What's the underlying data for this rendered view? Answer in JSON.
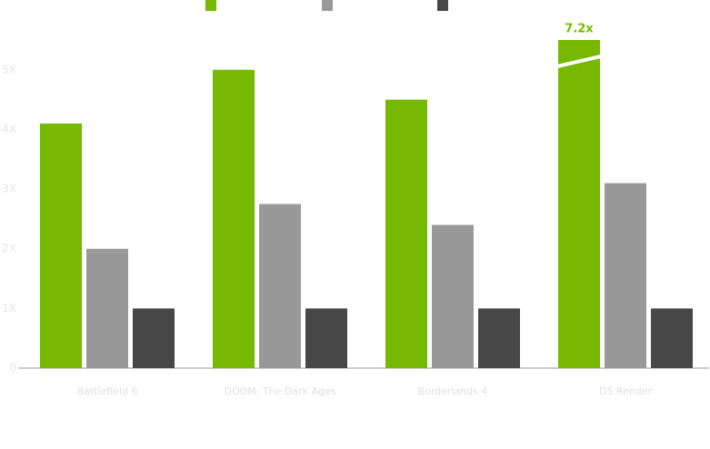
{
  "chart_data": {
    "type": "bar",
    "categories": [
      "Battlefield 6",
      "DOOM: The Dark Ages",
      "Borderlands 4",
      "D5 Render"
    ],
    "series": [
      {
        "color": "#76b900",
        "values": [
          4.1,
          5.0,
          4.5,
          7.2
        ],
        "value_labels": [
          null,
          null,
          null,
          "7.2x"
        ]
      },
      {
        "color": "#999999",
        "values": [
          2.0,
          2.75,
          2.4,
          3.1
        ]
      },
      {
        "color": "#474747",
        "values": [
          1.0,
          1.0,
          1.0,
          1.0
        ]
      }
    ],
    "ylim": [
      0,
      5.5
    ],
    "yticks": [
      0,
      {
        "value": 1,
        "label": "1X"
      },
      {
        "value": 2,
        "label": "2X"
      },
      {
        "value": 3,
        "label": "3X"
      },
      {
        "value": 4,
        "label": "4X"
      },
      {
        "value": 5,
        "label": "5X"
      }
    ],
    "grid": false
  }
}
